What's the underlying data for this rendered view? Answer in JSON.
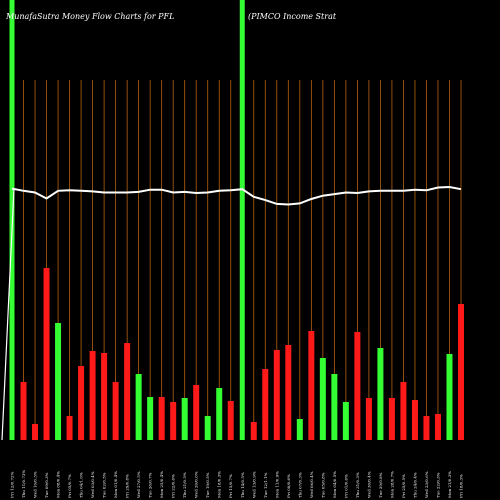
{
  "chart_data": {
    "type": "bar",
    "title_left": "MunafaSutra  Money Flow  Charts for PFL",
    "title_right": "(PIMCO Income   Strat",
    "colors": {
      "background": "#000000",
      "up": "#33ff33",
      "down": "#ff1a1a",
      "grid": "#b8620f",
      "price_line": "#ffffff",
      "highlight": "#33ff33",
      "text": "#ffffff"
    },
    "highlight_bars": [
      0,
      20
    ],
    "categories": [
      "Fri 12/0.72%",
      "Thu 11/0.73%",
      "Wed 10/0.3%",
      "Tue 09/0.3%",
      "Mon 08/0.4%",
      "Fri 05/0.7%",
      "Thu 04/1.0%",
      "Wed 03/0.4%",
      "Tue 02/0.5%",
      "Mon 01/0.4%",
      "Fri 29/0.8%",
      "Wed 27/0.5%",
      "Tue 26/0.7%",
      "Mon 25/0.4%",
      "Fri 22/0.6%",
      "Thu 21/0.5%",
      "Wed 20/0.6%",
      "Tue 19/0.5%",
      "Mon 18/0.3%",
      "Fri 15/0.7%",
      "Thu 14/0.5%",
      "Wed 13/0.9%",
      "Tue 12/1.1%",
      "Mon 11/0.9%",
      "Fri 08/0.6%",
      "Thu 07/0.3%",
      "Wed 06/0.4%",
      "Tue 05/0.8%",
      "Mon 04/0.5%",
      "Fri 01/0.6%",
      "Thu 31/0.3%",
      "Wed 30/0.4%",
      "Tue 29/0.8%",
      "Mon 28/0.7%",
      "Fri 25/0.5%",
      "Thu 24/0.4%",
      "Wed 23/0.6%",
      "Tue 22/0.3%",
      "Mon 21/0.3%",
      "Fri 18/0.3%"
    ],
    "values": [
      0,
      58,
      16,
      172,
      117,
      24,
      74,
      89,
      87,
      58,
      97,
      66,
      43,
      43,
      38,
      42,
      55,
      24,
      52,
      39,
      0,
      18,
      71,
      90,
      95,
      21,
      109,
      82,
      66,
      38,
      108,
      42,
      92,
      42,
      58,
      40,
      24,
      26,
      86,
      136
    ],
    "direction": [
      "up",
      "down",
      "down",
      "down",
      "up",
      "down",
      "down",
      "down",
      "down",
      "down",
      "down",
      "up",
      "up",
      "down",
      "down",
      "up",
      "down",
      "up",
      "up",
      "down",
      "up",
      "down",
      "down",
      "down",
      "down",
      "up",
      "down",
      "up",
      "up",
      "up",
      "down",
      "down",
      "up",
      "down",
      "down",
      "down",
      "down",
      "down",
      "up",
      "down"
    ],
    "price_line": [
      100,
      99.6,
      99.3,
      98.2,
      99.6,
      99.7,
      99.6,
      99.5,
      99.3,
      99.3,
      99.3,
      99.4,
      99.8,
      99.8,
      99.3,
      99.4,
      99.2,
      99.3,
      99.6,
      99.7,
      99.9,
      98.5,
      97.9,
      97.2,
      97.1,
      97.3,
      98.1,
      98.7,
      99.0,
      99.3,
      99.2,
      99.5,
      99.6,
      99.6,
      99.6,
      99.8,
      99.7,
      100.2,
      100.3,
      99.9
    ]
  }
}
